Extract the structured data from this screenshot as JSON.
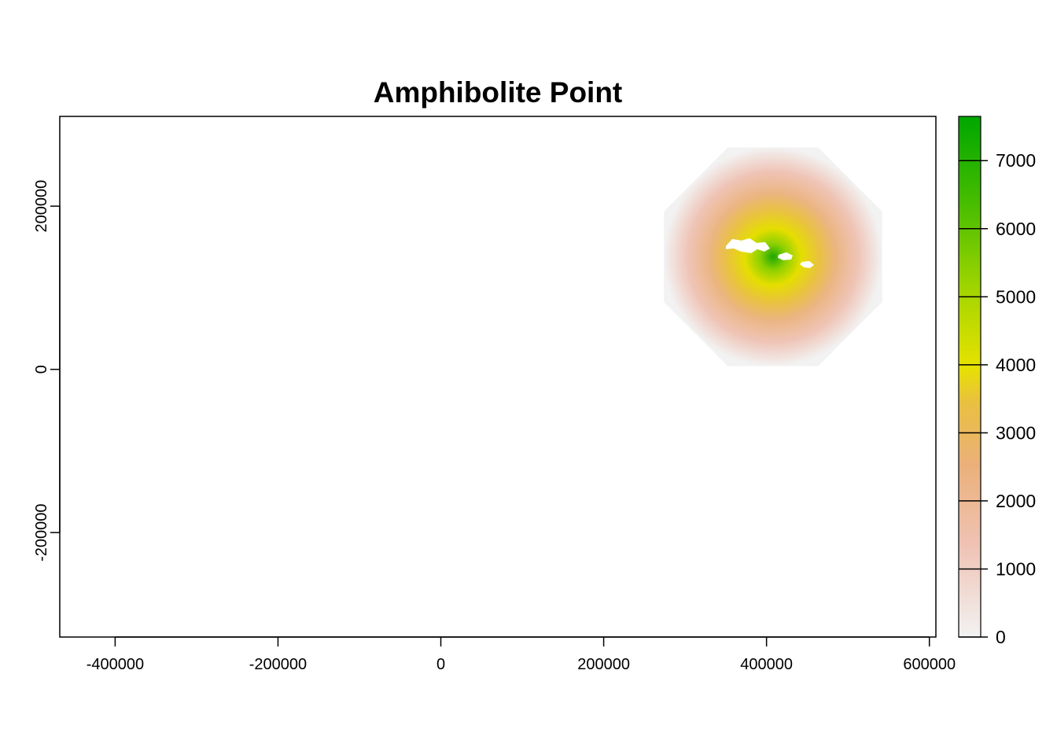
{
  "chart_data": {
    "type": "heatmap",
    "title": "Amphibolite Point",
    "xlabel": "",
    "ylabel": "",
    "xlim": [
      -468000,
      608000
    ],
    "ylim": [
      -328000,
      310000
    ],
    "x_ticks": [
      -400000,
      -200000,
      0,
      200000,
      400000,
      600000
    ],
    "x_tick_labels": [
      "-400000",
      "-200000",
      "0",
      "200000",
      "400000",
      "600000"
    ],
    "y_ticks": [
      -200000,
      0,
      200000
    ],
    "y_tick_labels": [
      "-200000",
      "0",
      "200000"
    ],
    "raster": {
      "center": [
        408000,
        138000
      ],
      "peak_value": 7600,
      "outer_radius": 145000,
      "shape": "octagon",
      "nodata_patch_near": [
        410000,
        155000
      ]
    },
    "legend": {
      "placement": "right",
      "range": [
        0,
        7650
      ],
      "ticks": [
        0,
        1000,
        2000,
        3000,
        4000,
        5000,
        6000,
        7000
      ],
      "tick_labels": [
        "0",
        "1000",
        "2000",
        "3000",
        "4000",
        "5000",
        "6000",
        "7000"
      ],
      "colors": [
        "#f2f2f2",
        "#efc2b3",
        "#ecb176",
        "#e6c100",
        "#c3dd00",
        "#6ec600",
        "#00a600"
      ]
    }
  }
}
